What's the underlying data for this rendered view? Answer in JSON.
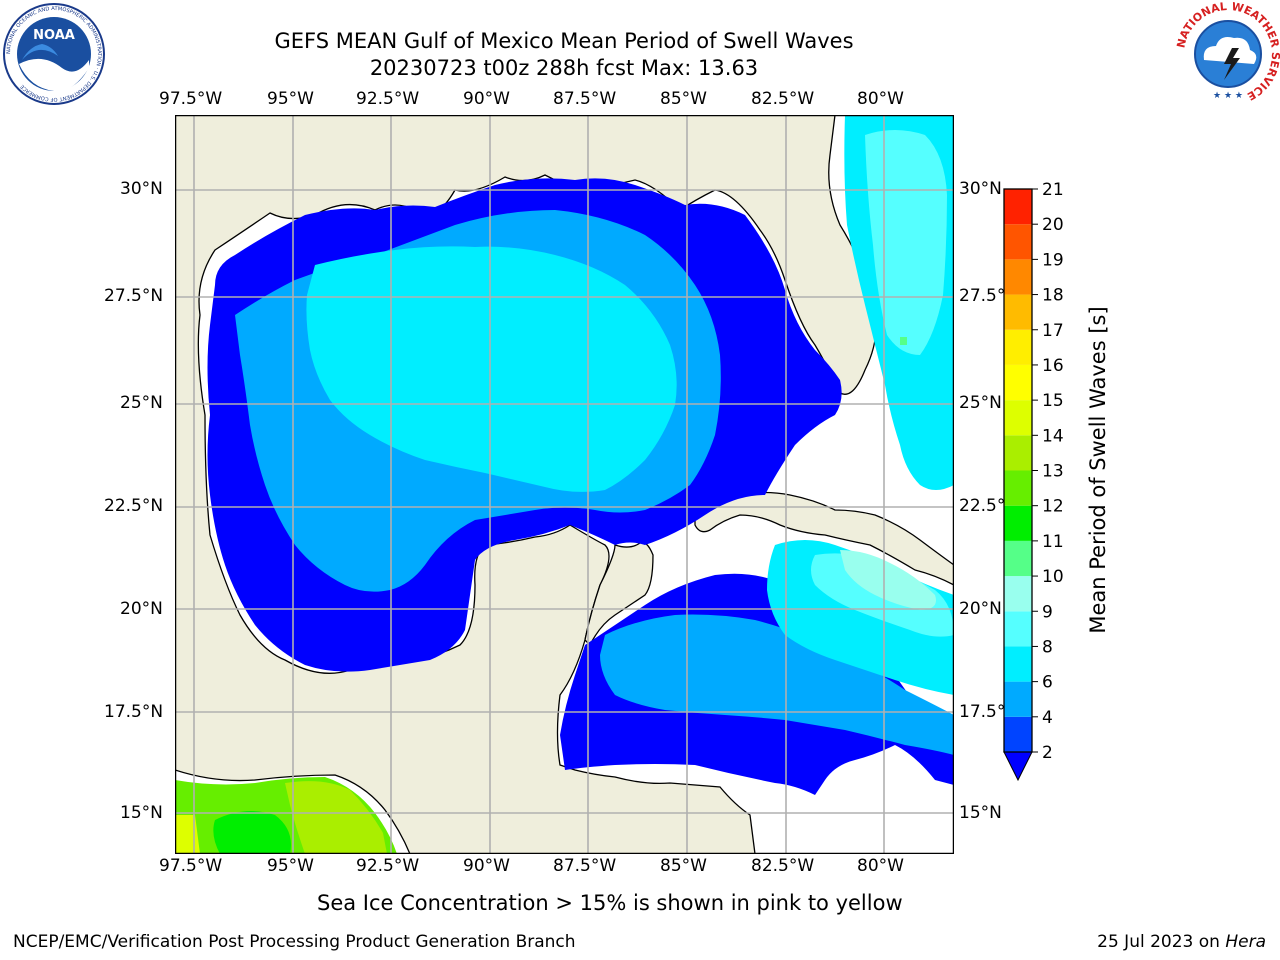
{
  "title_line1": "GEFS MEAN Gulf of Mexico Mean Period of Swell Waves",
  "title_line2": "20230723 t00z 288h fcst   Max: 13.63",
  "map": {
    "lon_ticks": [
      "97.5°W",
      "95°W",
      "92.5°W",
      "90°W",
      "87.5°W",
      "85°W",
      "82.5°W",
      "80°W"
    ],
    "lat_ticks_left": [
      "30°N",
      "27.5°N",
      "25°N",
      "22.5°N",
      "20°N",
      "17.5°N",
      "15°N"
    ],
    "lat_ticks_right": [
      "30°N",
      "27.5°",
      "25°N",
      "22.5°",
      "20°N",
      "17.5°",
      "15°N"
    ],
    "land_color": "#efeedc",
    "grid_color": "#b0b0b0"
  },
  "colorbar": {
    "label": "Mean Period of Swell Waves [s]",
    "levels": [
      2,
      4,
      6,
      8,
      9,
      10,
      11,
      12,
      13,
      14,
      15,
      16,
      17,
      18,
      19,
      20,
      21
    ],
    "colors": [
      "#0044ff",
      "#00aaff",
      "#00eeff",
      "#55ffff",
      "#99ffee",
      "#55ff88",
      "#00ee00",
      "#66ee00",
      "#aaee00",
      "#ddff00",
      "#ffff00",
      "#ffee00",
      "#ffbb00",
      "#ff8800",
      "#ff5500",
      "#ff2200"
    ],
    "extend_color": "#0000ff"
  },
  "sea_ice_note": "Sea Ice Concentration > 15% is shown in pink to yellow",
  "footer_left": "NCEP/EMC/Verification Post Processing Product Generation Branch",
  "footer_date": "25 Jul 2023 on ",
  "footer_host": "Hera",
  "logos": {
    "noaa_text": "NOAA",
    "noaa_ring": "NATIONAL OCEANIC AND ATMOSPHERIC ADMINISTRATION · U.S. DEPARTMENT OF COMMERCE",
    "nws_ring": "NATIONAL WEATHER SERVICE"
  }
}
